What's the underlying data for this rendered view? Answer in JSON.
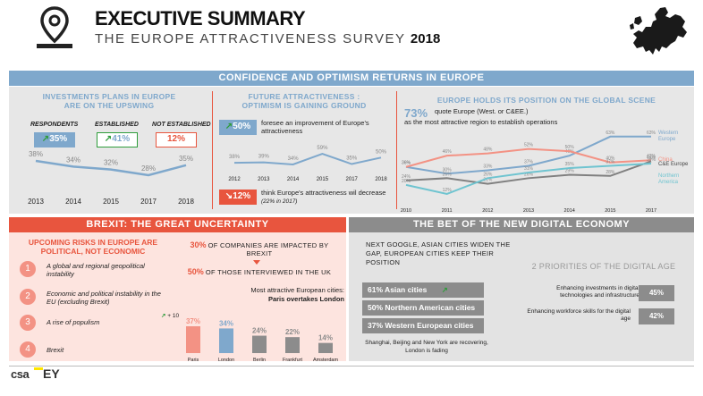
{
  "header": {
    "title": "EXECUTIVE SUMMARY",
    "subtitle_prefix": "THE EUROPE ATTRACTIVENESS SURVEY",
    "subtitle_year": "2018"
  },
  "colors": {
    "blue": "#7fa8cc",
    "red": "#e8553e",
    "salmon": "#f39284",
    "grey": "#8c8c8c",
    "green": "#2e9c3b"
  },
  "confidence": {
    "band": "CONFIDENCE  AND  OPTIMISM RETURNS IN EUROPE",
    "investments": {
      "title_line1": "INVESTMENTS  PLANS IN EUROPE",
      "title_line2": "ARE ON THE UPSWING",
      "labels": {
        "respondents": "RESPONDENTS",
        "established": "ESTABLISHED",
        "not_established": "NOT ESTABLISHED"
      },
      "values": {
        "respondents": "35%",
        "established": "41%",
        "not_established": "12%"
      },
      "chart_data": {
        "type": "line",
        "x": [
          "2013",
          "2014",
          "2015",
          "2017",
          "2018"
        ],
        "values": [
          38,
          34,
          32,
          28,
          35
        ],
        "point_labels": [
          "38%",
          "34%",
          "32%",
          "28%",
          "35%"
        ]
      }
    },
    "future": {
      "title_line1": "FUTURE  ATTRACTIVENESS :",
      "title_line2": "OPTIMISM IS GAINING GROUND",
      "improve_value": "50%",
      "improve_text": "foresee an improvement of Europe's attractiveness",
      "decrease_value": "12%",
      "decrease_text": "think Europe's attractiveness wil decrease",
      "decrease_note": "(22% in 2017)",
      "chart_data": {
        "type": "line",
        "x": [
          "2012",
          "2013",
          "2014",
          "2015",
          "2017",
          "2018"
        ],
        "values": [
          38,
          39,
          34,
          59,
          35,
          50
        ],
        "point_labels": [
          "38%",
          "39%",
          "34%",
          "59%",
          "35%",
          "50%"
        ]
      }
    },
    "global": {
      "title": "EUROPE HOLDS ITS POSITION  ON THE GLOBAL SCENE",
      "stat_value": "73%",
      "stat_text_line1": "quote Europe (West. or C&EE.)",
      "stat_text_line2": "as the most attractive region to establish operations",
      "chart_data": {
        "type": "line",
        "x": [
          "2010",
          "2011",
          "2012",
          "2013",
          "2014",
          "2015",
          "2017"
        ],
        "series": [
          {
            "name": "Western Europe",
            "color": "#7fa8cc",
            "values": [
              36,
              30,
              33,
              37,
              46,
              63,
              63
            ],
            "labels": [
              "36%",
              "30%",
              "33%",
              "37%",
              "46%",
              "63%",
              "63%"
            ]
          },
          {
            "name": "China",
            "color": "#f39284",
            "values": [
              36,
              46,
              48,
              52,
              50,
              40,
              42
            ],
            "labels": [
              "36%",
              "46%",
              "48%",
              "52%",
              "50%",
              "40%",
              "42%"
            ]
          },
          {
            "name": "C&E Europe",
            "color": "#808080",
            "values": [
              24,
              26,
              21,
              26,
              29,
              28,
              41
            ],
            "labels": [
              "24%",
              "26%",
              "21%",
              "26%",
              "29%",
              "28%",
              "41%"
            ]
          },
          {
            "name": "Northern America",
            "color": "#6fc4d0",
            "values": [
              20,
              12,
              26,
              31,
              35,
              37,
              39
            ],
            "labels": [
              "20%",
              "12%",
              "26%",
              "31%",
              "35%",
              "37%",
              "39%"
            ]
          }
        ],
        "ylim": [
          0,
          70
        ]
      }
    }
  },
  "brexit": {
    "band": "BREXIT: THE GREAT UNCERTAINTY",
    "risks_title_line1": "UPCOMING RISKS IN EUROPE ARE",
    "risks_title_line2": "POLITICAL, NOT ECONOMIC",
    "risks": [
      {
        "num": "1",
        "text": "A global and regional geopolitical instability"
      },
      {
        "num": "2",
        "text": "Economic and political instability in the EU (excluding Brexit)"
      },
      {
        "num": "3",
        "text": "A rise of populism"
      },
      {
        "num": "4",
        "text": "Brexit"
      }
    ],
    "impacted_value": "30%",
    "impacted_text": "OF COMPANIES ARE IMPACTED BY BREXIT",
    "interviewed_value": "50%",
    "interviewed_text": "OF THOSE INTERVIEWED IN THE UK",
    "cities_title": "Most attractive European cities:",
    "cities_subtitle": "Paris overtakes London",
    "paris_delta": "+ 10",
    "chart_data": {
      "type": "bar",
      "categories": [
        "Paris",
        "London",
        "Berlin",
        "Frankfurt",
        "Amsterdam"
      ],
      "values": [
        37,
        34,
        24,
        22,
        14
      ],
      "labels": [
        "37%",
        "34%",
        "24%",
        "22%",
        "14%"
      ],
      "colors": [
        "#f39284",
        "#7fa8cc",
        "#8c8c8c",
        "#8c8c8c",
        "#8c8c8c"
      ]
    }
  },
  "digital": {
    "band": "THE BET OF THE NEW DIGITAL ECONOMY",
    "intro": "NEXT GOOGLE, ASIAN CITIES  WIDEN THE GAP, EUROPEAN  CITIES KEEP THEIR POSITION",
    "rows": [
      {
        "label": "61%  Asian cities"
      },
      {
        "label": "50% Northern American cities"
      },
      {
        "label": "37% Western European cities"
      }
    ],
    "note": "Shanghai, Beijing and  New York are recovering,  London is fading",
    "priorities_title": "2 PRIORITIES OF THE DIGITAL AGE",
    "priorities": [
      {
        "text": "Enhancing investments in digital technologies and infrastructure",
        "value": "45%"
      },
      {
        "text": "Enhancing workforce skills for the digital age",
        "value": "42%"
      }
    ]
  },
  "footer": {
    "logo1": "csa",
    "logo2": "EY"
  }
}
